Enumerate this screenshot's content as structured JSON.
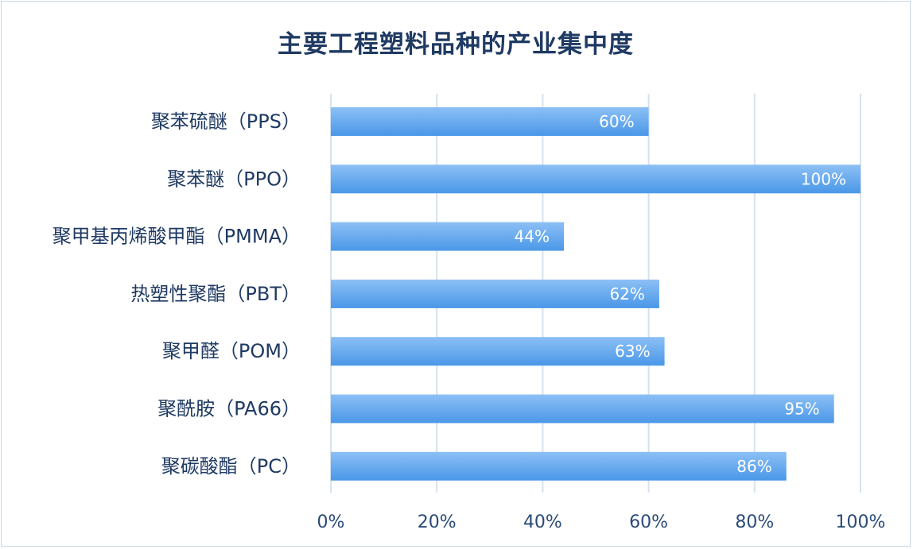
{
  "chart_data": {
    "type": "bar",
    "orientation": "horizontal",
    "title": "主要工程塑料品种的产业集中度",
    "categories": [
      "聚苯硫醚（PPS）",
      "聚苯醚（PPO）",
      "聚甲基丙烯酸甲酯（PMMA）",
      "热塑性聚酯（PBT）",
      "聚甲醛（POM）",
      "聚酰胺（PA66）",
      "聚碳酸酯（PC）"
    ],
    "values": [
      60,
      100,
      44,
      62,
      63,
      95,
      86
    ],
    "data_labels": [
      "60%",
      "100%",
      "44%",
      "62%",
      "63%",
      "95%",
      "86%"
    ],
    "x_ticks": [
      "0%",
      "20%",
      "40%",
      "60%",
      "80%",
      "100%"
    ],
    "xlim": [
      0,
      100
    ],
    "grid": "vertical",
    "bar_color": "#4a97e8",
    "bar_color_light": "#8cc0f5",
    "text_color": "#1f3a63",
    "grid_color": "#d6e2ee"
  }
}
